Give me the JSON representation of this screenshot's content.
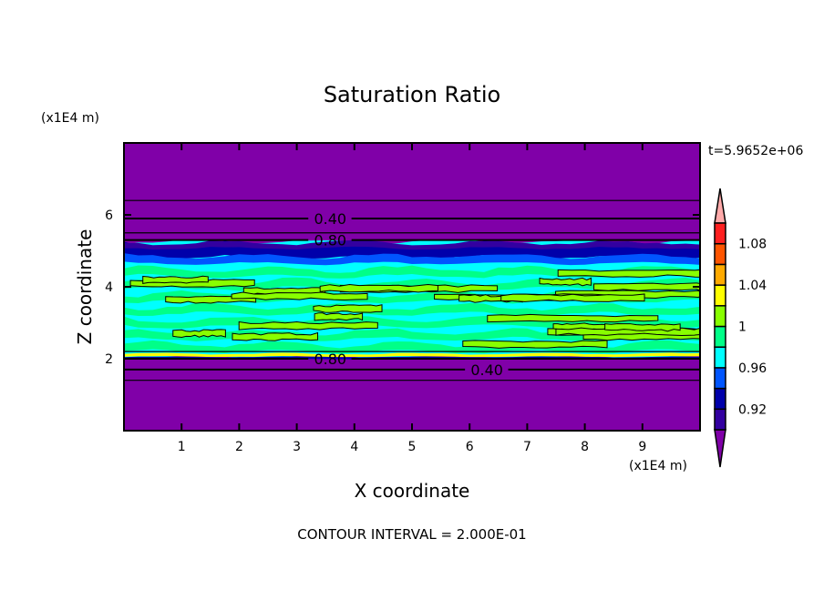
{
  "chart_data": {
    "type": "heatmap",
    "title": "Saturation Ratio",
    "xlabel": "X coordinate",
    "ylabel": "Z coordinate",
    "x_unit": "(x1E4 m)",
    "y_unit": "(x1E4 m)",
    "xlim": [
      0,
      10
    ],
    "ylim": [
      0,
      8
    ],
    "x_ticks": [
      "1",
      "2",
      "3",
      "4",
      "5",
      "6",
      "7",
      "8",
      "9"
    ],
    "y_ticks": [
      "2",
      "4",
      "6"
    ],
    "time_label": "t=5.9652e+06",
    "footer": "CONTOUR INTERVAL = 2.000E-01",
    "contour_lines": [
      {
        "level": "0.40",
        "z": 5.9
      },
      {
        "level": "0.80",
        "z": 5.3
      },
      {
        "level": "0.80",
        "z": 2.0
      },
      {
        "level": "0.40",
        "z": 1.7
      }
    ],
    "colorbar": {
      "levels": [
        0.9,
        0.92,
        0.94,
        0.96,
        0.98,
        1.0,
        1.02,
        1.04,
        1.06,
        1.08,
        1.1
      ],
      "tick_labels": [
        {
          "value": 0.92,
          "label": "0.92"
        },
        {
          "value": 0.96,
          "label": "0.96"
        },
        {
          "value": 1.0,
          "label": "1"
        },
        {
          "value": 1.04,
          "label": "1.04"
        },
        {
          "value": 1.08,
          "label": "1.08"
        }
      ],
      "colors": [
        "#3300A0",
        "#0000AA",
        "#0055FF",
        "#00FFFF",
        "#00FF88",
        "#88FF00",
        "#FFFF00",
        "#FFAA00",
        "#FF5500",
        "#FF2020"
      ],
      "under_color": "#8000A8",
      "over_color": "#FFAAAA",
      "extend": "both"
    },
    "field_summary": {
      "background_color": "#8000A8",
      "moist_layer_z": [
        2.0,
        5.2
      ]
    }
  }
}
